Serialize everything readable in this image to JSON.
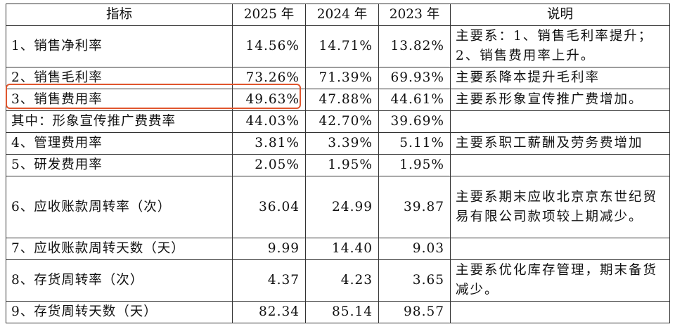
{
  "table": {
    "header": [
      "指标",
      "2025 年",
      "2024 年",
      "2023 年",
      "说明"
    ],
    "rows": [
      {
        "label": "1、销售净利率",
        "values": [
          "14.56%",
          "14.71%",
          "13.82%"
        ],
        "note": "主要系：1、销售毛利率提升；2、销售费用率上升。"
      },
      {
        "label": "2、销售毛利率",
        "values": [
          "73.26%",
          "71.39%",
          "69.93%"
        ],
        "note": "主要系降本提升毛利率"
      },
      {
        "label": "3、销售费用率",
        "values": [
          "49.63%",
          "47.88%",
          "44.61%"
        ],
        "note": "主要系形象宣传推广费增加。"
      },
      {
        "label": "其中：形象宣传推广费费率",
        "values": [
          "44.03%",
          "42.70%",
          "39.69%"
        ]
      },
      {
        "label": "4、管理费用率",
        "values": [
          "3.81%",
          "3.39%",
          "5.11%"
        ],
        "note": "主要系职工薪酬及劳务费增加"
      },
      {
        "label": "5、研发费用率",
        "values": [
          "2.05%",
          "1.95%",
          "1.95%"
        ]
      },
      {
        "label": "6、应收账款周转率（次）",
        "values": [
          "36.04",
          "24.99",
          "39.87"
        ],
        "note": "主要系期末应收北京京东世纪贸易有限公司款项较上期减少。"
      },
      {
        "label": "7、应收账款周转天数（天）",
        "values": [
          "9.99",
          "14.40",
          "9.03"
        ]
      },
      {
        "label": "8、存货周转率（次）",
        "values": [
          "4.37",
          "4.23",
          "3.65"
        ],
        "note": "主要系优化库存管理，期末备货减少。"
      },
      {
        "label": "9、存货周转天数（天）",
        "values": [
          "82.34",
          "85.14",
          "98.57"
        ]
      }
    ]
  }
}
